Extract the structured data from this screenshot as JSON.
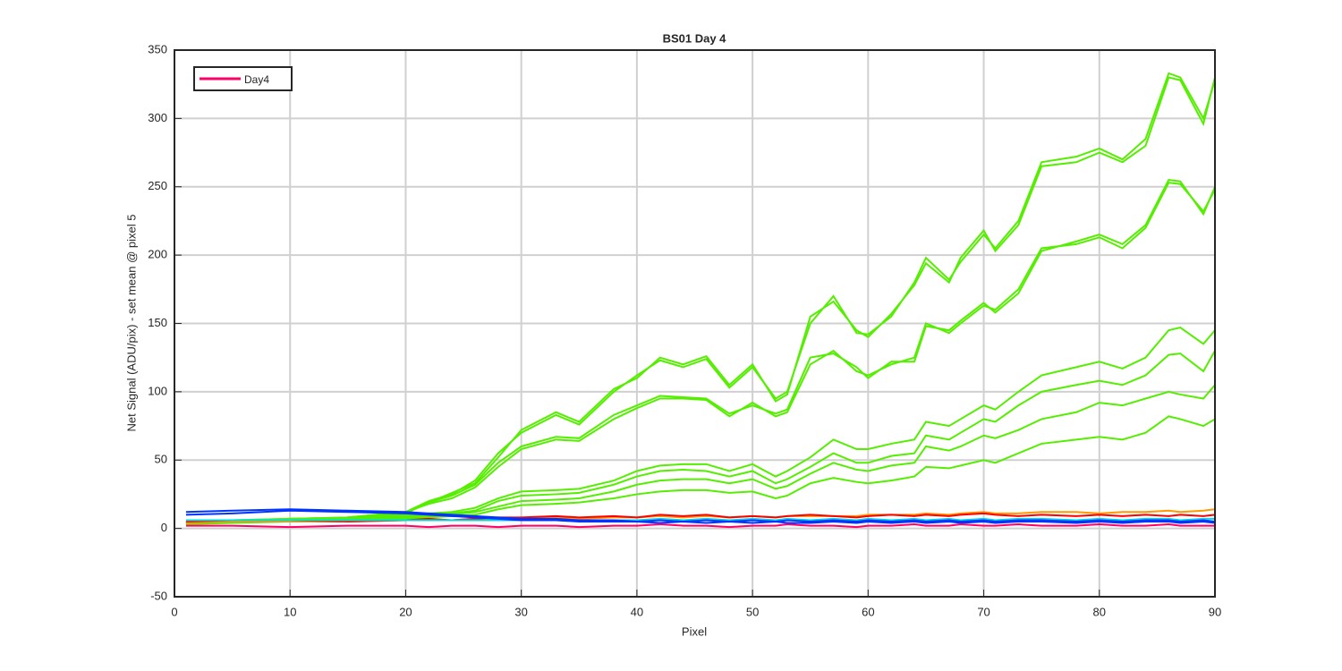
{
  "chart_data": {
    "type": "line",
    "title": "BS01 Day 4",
    "x_label": "Pixel",
    "y_label": "Net Signal (ADU/pix) - set mean @ pixel 5",
    "x": [
      1,
      5,
      10,
      15,
      20,
      22,
      24,
      26,
      28,
      30,
      33,
      35,
      38,
      40,
      42,
      44,
      46,
      48,
      50,
      52,
      53,
      55,
      57,
      59,
      60,
      62,
      64,
      65,
      67,
      68,
      70,
      71,
      73,
      75,
      78,
      80,
      82,
      84,
      86,
      87,
      89,
      90
    ],
    "series": [
      {
        "color": "#55ee00",
        "values": [
          5,
          6,
          7,
          8,
          12,
          20,
          25,
          35,
          55,
          70,
          83,
          76,
          100,
          112,
          123,
          118,
          124,
          103,
          118,
          95,
          100,
          150,
          170,
          143,
          142,
          155,
          180,
          198,
          182,
          195,
          215,
          205,
          225,
          268,
          272,
          278,
          270,
          285,
          333,
          330,
          300,
          328
        ]
      },
      {
        "color": "#55ee00",
        "values": [
          4,
          6,
          6,
          8,
          11,
          19,
          26,
          33,
          52,
          72,
          85,
          78,
          102,
          110,
          125,
          120,
          126,
          105,
          120,
          93,
          98,
          155,
          166,
          145,
          140,
          157,
          178,
          194,
          180,
          198,
          218,
          203,
          222,
          265,
          268,
          275,
          268,
          280,
          330,
          328,
          296,
          330
        ]
      },
      {
        "color": "#55ee00",
        "values": [
          5,
          6,
          7,
          8,
          12,
          18,
          22,
          30,
          45,
          58,
          65,
          64,
          80,
          88,
          95,
          95,
          94,
          82,
          92,
          82,
          85,
          120,
          130,
          115,
          112,
          120,
          125,
          150,
          143,
          150,
          163,
          160,
          175,
          205,
          208,
          213,
          205,
          220,
          253,
          252,
          232,
          248
        ]
      },
      {
        "color": "#55ee00",
        "values": [
          4,
          5,
          7,
          8,
          11,
          19,
          24,
          32,
          48,
          60,
          67,
          66,
          83,
          90,
          97,
          96,
          95,
          84,
          90,
          84,
          87,
          125,
          128,
          118,
          110,
          122,
          122,
          148,
          145,
          152,
          165,
          158,
          172,
          203,
          210,
          215,
          208,
          222,
          255,
          254,
          230,
          250
        ]
      },
      {
        "color": "#55ee00",
        "values": [
          4,
          5,
          6,
          8,
          10,
          11,
          12,
          15,
          22,
          27,
          28,
          29,
          35,
          42,
          46,
          47,
          47,
          42,
          47,
          38,
          42,
          52,
          65,
          58,
          58,
          62,
          65,
          78,
          75,
          80,
          90,
          87,
          100,
          112,
          118,
          122,
          117,
          125,
          145,
          147,
          135,
          145
        ]
      },
      {
        "color": "#55ee00",
        "values": [
          4,
          5,
          6,
          7,
          9,
          10,
          11,
          13,
          20,
          24,
          25,
          26,
          32,
          38,
          42,
          43,
          42,
          38,
          42,
          33,
          36,
          45,
          55,
          48,
          48,
          53,
          55,
          68,
          65,
          70,
          80,
          78,
          90,
          100,
          105,
          108,
          105,
          112,
          127,
          128,
          115,
          130
        ]
      },
      {
        "color": "#55ee00",
        "values": [
          4,
          5,
          6,
          7,
          8,
          9,
          10,
          12,
          16,
          20,
          21,
          22,
          27,
          32,
          35,
          36,
          36,
          33,
          36,
          29,
          31,
          40,
          48,
          43,
          42,
          46,
          48,
          60,
          57,
          60,
          68,
          66,
          72,
          80,
          85,
          92,
          90,
          95,
          100,
          98,
          95,
          105
        ]
      },
      {
        "color": "#55ee00",
        "values": [
          3,
          4,
          5,
          6,
          7,
          8,
          9,
          10,
          14,
          17,
          18,
          19,
          22,
          25,
          27,
          28,
          28,
          26,
          27,
          22,
          24,
          33,
          37,
          34,
          33,
          35,
          38,
          45,
          44,
          46,
          50,
          48,
          55,
          62,
          65,
          67,
          65,
          70,
          82,
          80,
          75,
          80
        ]
      },
      {
        "color": "#ff9900",
        "values": [
          4,
          5,
          5,
          5,
          6,
          6,
          6,
          7,
          7,
          7,
          8,
          7,
          8,
          8,
          9,
          8,
          9,
          8,
          9,
          8,
          9,
          9,
          9,
          9,
          10,
          10,
          10,
          11,
          10,
          11,
          12,
          11,
          11,
          12,
          12,
          11,
          12,
          12,
          13,
          12,
          13,
          14
        ]
      },
      {
        "color": "#ff0000",
        "values": [
          5,
          6,
          6,
          5,
          6,
          7,
          6,
          7,
          8,
          8,
          9,
          8,
          9,
          8,
          10,
          9,
          10,
          8,
          9,
          8,
          9,
          10,
          9,
          8,
          9,
          10,
          9,
          10,
          9,
          10,
          11,
          10,
          9,
          10,
          9,
          10,
          9,
          10,
          9,
          10,
          9,
          10
        ]
      },
      {
        "color": "#00dddd",
        "values": [
          6,
          6,
          6,
          6,
          6,
          6,
          6,
          6,
          6,
          6,
          6,
          6,
          6,
          6,
          7,
          6,
          7,
          6,
          7,
          6,
          7,
          6,
          7,
          6,
          7,
          6,
          7,
          6,
          7,
          6,
          7,
          6,
          7,
          7,
          6,
          7,
          6,
          7,
          7,
          6,
          7,
          7
        ]
      },
      {
        "color": "#0033ff",
        "values": [
          10,
          11,
          13,
          12,
          11,
          10,
          9,
          8,
          7,
          6,
          6,
          5,
          5,
          5,
          4,
          5,
          4,
          5,
          4,
          5,
          4,
          4,
          5,
          4,
          5,
          4,
          5,
          4,
          5,
          4,
          5,
          4,
          5,
          5,
          4,
          5,
          4,
          5,
          5,
          4,
          5,
          4
        ]
      },
      {
        "color": "#0033ff",
        "values": [
          12,
          13,
          14,
          13,
          12,
          11,
          10,
          9,
          8,
          7,
          7,
          6,
          6,
          5,
          6,
          5,
          6,
          5,
          6,
          5,
          6,
          5,
          6,
          5,
          6,
          5,
          6,
          5,
          6,
          5,
          6,
          5,
          6,
          6,
          5,
          6,
          5,
          6,
          6,
          5,
          6,
          5
        ]
      },
      {
        "name": "Day4",
        "color": "#ff0066",
        "values": [
          2,
          2,
          1,
          2,
          2,
          1,
          2,
          2,
          1,
          2,
          2,
          1,
          2,
          2,
          3,
          2,
          2,
          1,
          2,
          2,
          3,
          2,
          2,
          1,
          2,
          2,
          3,
          2,
          2,
          3,
          2,
          2,
          3,
          2,
          2,
          3,
          2,
          2,
          3,
          2,
          2,
          2
        ]
      }
    ],
    "xlim": [
      0,
      90
    ],
    "ylim": [
      -50,
      350
    ],
    "xticks": [
      0,
      10,
      20,
      30,
      40,
      50,
      60,
      70,
      80,
      90
    ],
    "yticks": [
      -50,
      0,
      50,
      100,
      150,
      200,
      250,
      300,
      350
    ],
    "grid": true,
    "legend": "upper left"
  }
}
